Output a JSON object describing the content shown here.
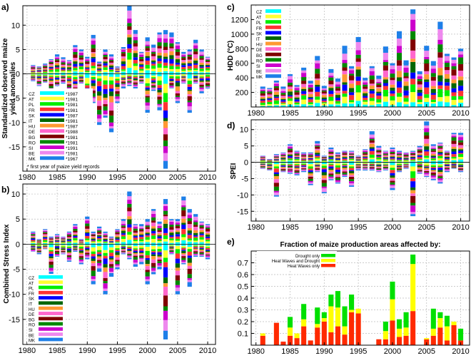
{
  "panels": {
    "a": {
      "label": "a)",
      "ylabel_lines": [
        "Standardized observed maize",
        "yield anomalies"
      ],
      "footnote": "* first year of maize yield records"
    },
    "b": {
      "label": "b)",
      "ylabel": "Combined Stress Index"
    },
    "c": {
      "label": "c)",
      "ylabel": "HDD (°C)"
    },
    "d": {
      "label": "d)",
      "ylabel": "SPEI"
    },
    "e": {
      "label": "e)",
      "title": "Fraction of maize production areas affected by:"
    }
  },
  "countries": [
    "CZ",
    "AT",
    "PL",
    "FR",
    "SK",
    "IT",
    "HU",
    "DE",
    "BG",
    "RO",
    "SI",
    "BE",
    "MK"
  ],
  "country_colors": [
    "#00ffff",
    "#ffff33",
    "#00ee00",
    "#ff3333",
    "#0000ff",
    "#006600",
    "#ff9933",
    "#ff66cc",
    "#800000",
    "#008800",
    "#cc00cc",
    "#ee88ee",
    "#1e7fe8"
  ],
  "first_year_labels": [
    "*1987",
    "*1981",
    "*1981",
    "*1981",
    "*1987",
    "*1981",
    "*1987",
    "*1988",
    "*1981",
    "*1981",
    "*1991",
    "*1981",
    "*1967"
  ],
  "chart_data": [
    {
      "type": "bar",
      "panel": "a",
      "stacked": "diverging",
      "x": [
        1981,
        1982,
        1983,
        1984,
        1985,
        1986,
        1987,
        1988,
        1989,
        1990,
        1991,
        1992,
        1993,
        1994,
        1995,
        1996,
        1997,
        1998,
        1999,
        2000,
        2001,
        2002,
        2003,
        2004,
        2005,
        2006,
        2007,
        2008,
        2009,
        2010
      ],
      "xticks": [
        1980,
        1985,
        1990,
        1995,
        2000,
        2005,
        2010
      ],
      "yticks": [
        10,
        5,
        0,
        -5,
        -10,
        -15
      ],
      "ylim": [
        -20,
        14
      ],
      "xlim": [
        1979.3,
        2011.3
      ],
      "pos_total": [
        1.8,
        1.5,
        2.1,
        3.0,
        4.0,
        3.4,
        2.8,
        5.9,
        5.0,
        3.5,
        8.0,
        2.5,
        5.0,
        4.0,
        1.5,
        5.5,
        14.0,
        9.0,
        4.5,
        7.5,
        6.0,
        8.5,
        9.0,
        8.5,
        6.5,
        4.5,
        5.0,
        7.0,
        5.0,
        3.5
      ],
      "neg_total": [
        -1.5,
        -2.5,
        -1.8,
        -3.5,
        -2.5,
        -2.0,
        -3.5,
        -4.5,
        -2.0,
        -10.0,
        -6.0,
        -10.5,
        -9.0,
        -12.0,
        -6.0,
        -3.0,
        -2.5,
        -3.0,
        -2.0,
        -8.0,
        -3.5,
        -7.5,
        -19.5,
        -3.0,
        -6.0,
        -2.0,
        -8.0,
        -2.0,
        -4.0,
        -3.0
      ]
    },
    {
      "type": "bar",
      "panel": "b",
      "stacked": "diverging",
      "x": [
        1981,
        1982,
        1983,
        1984,
        1985,
        1986,
        1987,
        1988,
        1989,
        1990,
        1991,
        1992,
        1993,
        1994,
        1995,
        1996,
        1997,
        1998,
        1999,
        2000,
        2001,
        2002,
        2003,
        2004,
        2005,
        2006,
        2007,
        2008,
        2009,
        2010
      ],
      "xticks": [
        1980,
        1985,
        1990,
        1995,
        2000,
        2005,
        2010
      ],
      "yticks": [
        10,
        5,
        0,
        -5,
        -10,
        -15
      ],
      "ylim": [
        -20,
        12
      ],
      "xlim": [
        1979.3,
        2011.3
      ],
      "pos_total": [
        2.5,
        1.0,
        3.0,
        1.5,
        2.0,
        1.5,
        2.5,
        4.0,
        1.0,
        5.5,
        2.5,
        3.5,
        2.5,
        1.5,
        3.0,
        5.0,
        10.5,
        4.0,
        4.0,
        5.0,
        7.0,
        4.5,
        9.0,
        5.0,
        5.0,
        9.5,
        7.0,
        6.0,
        4.5,
        4.0
      ],
      "neg_total": [
        -1.5,
        -2.0,
        -1.0,
        -6.0,
        -2.5,
        -2.0,
        -3.5,
        -1.5,
        -4.0,
        -3.0,
        -8.0,
        -5.5,
        -10.0,
        -6.5,
        -5.0,
        -2.0,
        -3.0,
        -4.5,
        -4.0,
        -8.0,
        -6.0,
        -5.0,
        -19.0,
        -2.0,
        -10.0,
        -4.0,
        -8.5,
        -2.5,
        -2.5,
        -3.0
      ]
    },
    {
      "type": "bar",
      "panel": "c",
      "stacked": "positive",
      "x": [
        1981,
        1982,
        1983,
        1984,
        1985,
        1986,
        1987,
        1988,
        1989,
        1990,
        1991,
        1992,
        1993,
        1994,
        1995,
        1996,
        1997,
        1998,
        1999,
        2000,
        2001,
        2002,
        2003,
        2004,
        2005,
        2006,
        2007,
        2008,
        2009,
        2010
      ],
      "xticks": [
        1980,
        1985,
        1990,
        1995,
        2000,
        2005,
        2010
      ],
      "yticks": [
        1200,
        1000,
        800,
        600,
        400,
        200
      ],
      "ylim": [
        0,
        1400
      ],
      "xlim": [
        1979.3,
        2011.3
      ],
      "pos_total": [
        280,
        260,
        380,
        280,
        450,
        300,
        540,
        360,
        700,
        290,
        520,
        390,
        840,
        560,
        960,
        400,
        560,
        430,
        830,
        600,
        1040,
        640,
        1340,
        490,
        840,
        630,
        1170,
        730,
        680,
        800
      ]
    },
    {
      "type": "bar",
      "panel": "d",
      "stacked": "diverging",
      "x": [
        1981,
        1982,
        1983,
        1984,
        1985,
        1986,
        1987,
        1988,
        1989,
        1990,
        1991,
        1992,
        1993,
        1994,
        1995,
        1996,
        1997,
        1998,
        1999,
        2000,
        2001,
        2002,
        2003,
        2004,
        2005,
        2006,
        2007,
        2008,
        2009,
        2010
      ],
      "xticks": [
        1980,
        1985,
        1990,
        1995,
        2000,
        2005,
        2010
      ],
      "yticks": [
        10,
        5,
        0,
        -5,
        -10,
        -15
      ],
      "ylim": [
        -18,
        13
      ],
      "xlim": [
        1979.3,
        2011.3
      ],
      "pos_total": [
        2.0,
        1.0,
        2.5,
        3.0,
        5.5,
        3.5,
        3.0,
        3.0,
        6.5,
        2.0,
        4.5,
        3.0,
        3.5,
        3.5,
        2.0,
        4.0,
        9.5,
        5.0,
        3.5,
        4.5,
        3.5,
        3.0,
        3.5,
        5.0,
        12.5,
        5.5,
        6.0,
        3.5,
        9.0,
        9.0
      ],
      "neg_total": [
        -2.0,
        -2.5,
        -10.5,
        -3.0,
        -3.5,
        -4.0,
        -3.0,
        -7.0,
        -3.0,
        -9.5,
        -5.5,
        -6.5,
        -4.5,
        -7.5,
        -2.5,
        -2.5,
        -2.5,
        -3.0,
        -2.5,
        -8.5,
        -3.0,
        -2.0,
        -16.5,
        -3.5,
        -4.5,
        -5.5,
        -6.5,
        -3.0,
        -2.0,
        -3.0
      ]
    },
    {
      "type": "bar",
      "panel": "e",
      "stacked": "positive",
      "x": [
        1981,
        1982,
        1983,
        1984,
        1985,
        1986,
        1987,
        1988,
        1989,
        1990,
        1991,
        1992,
        1993,
        1994,
        1995,
        1996,
        1997,
        1998,
        1999,
        2000,
        2001,
        2002,
        2003,
        2004,
        2005,
        2006,
        2007,
        2008,
        2009,
        2010
      ],
      "xticks": [
        1980,
        1985,
        1990,
        1995,
        2000,
        2005,
        2010
      ],
      "yticks": [
        0.7,
        0.6,
        0.5,
        0.4,
        0.3,
        0.2,
        0.1
      ],
      "ylim": [
        0,
        0.8
      ],
      "xlim": [
        1979.3,
        2011.3
      ],
      "legend": [
        "Drought only",
        "Heat Waves and Drought",
        "Heat Waves only"
      ],
      "series_colors": [
        "#00e000",
        "#ffff00",
        "#ff2a00"
      ],
      "series": [
        {
          "name": "Heat Waves only",
          "values": [
            0.08,
            0.0,
            0.19,
            0.03,
            0.08,
            0.06,
            0.16,
            0.04,
            0.15,
            0.2,
            0.11,
            0.16,
            0.09,
            0.28,
            0.27,
            0.0,
            0.0,
            0.05,
            0.05,
            0.21,
            0.07,
            0.08,
            0.29,
            0.0,
            0.05,
            0.08,
            0.15,
            0.04,
            0.17,
            0.04
          ]
        },
        {
          "name": "Heat Waves and Drought",
          "values": [
            0.02,
            0.0,
            0.0,
            0.0,
            0.07,
            0.04,
            0.06,
            0.0,
            0.03,
            0.03,
            0.22,
            0.16,
            0.07,
            0.02,
            0.04,
            0.0,
            0.0,
            0.0,
            0.07,
            0.18,
            0.07,
            0.07,
            0.4,
            0.0,
            0.01,
            0.06,
            0.08,
            0.12,
            0.03,
            0.0
          ]
        },
        {
          "name": "Drought only",
          "values": [
            0.0,
            0.0,
            0.0,
            0.0,
            0.09,
            0.0,
            0.13,
            0.0,
            0.14,
            0.05,
            0.1,
            0.14,
            0.17,
            0.13,
            0.0,
            0.0,
            0.0,
            0.0,
            0.08,
            0.15,
            0.08,
            0.13,
            0.08,
            0.0,
            0.0,
            0.17,
            0.05,
            0.09,
            0.0,
            0.1
          ]
        }
      ]
    }
  ]
}
